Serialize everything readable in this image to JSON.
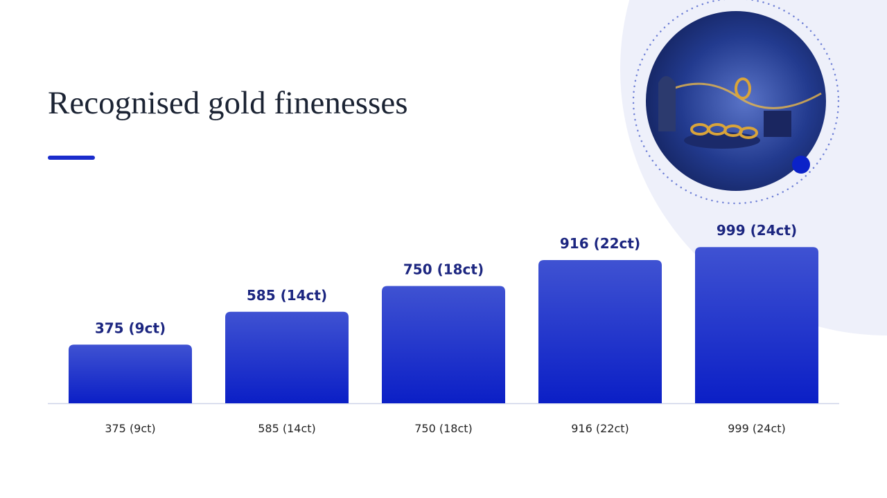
{
  "chart_data": {
    "type": "bar",
    "title": "Recognised gold finenesses",
    "categories": [
      "375 (9ct)",
      "585 (14ct)",
      "750 (18ct)",
      "916 (22ct)",
      "999 (24ct)"
    ],
    "values": [
      375,
      585,
      750,
      916,
      999
    ],
    "value_labels": [
      "375 (9ct)",
      "585 (14ct)",
      "750 (18ct)",
      "916 (22ct)",
      "999 (24ct)"
    ],
    "color": "#1a2ccc"
  }
}
